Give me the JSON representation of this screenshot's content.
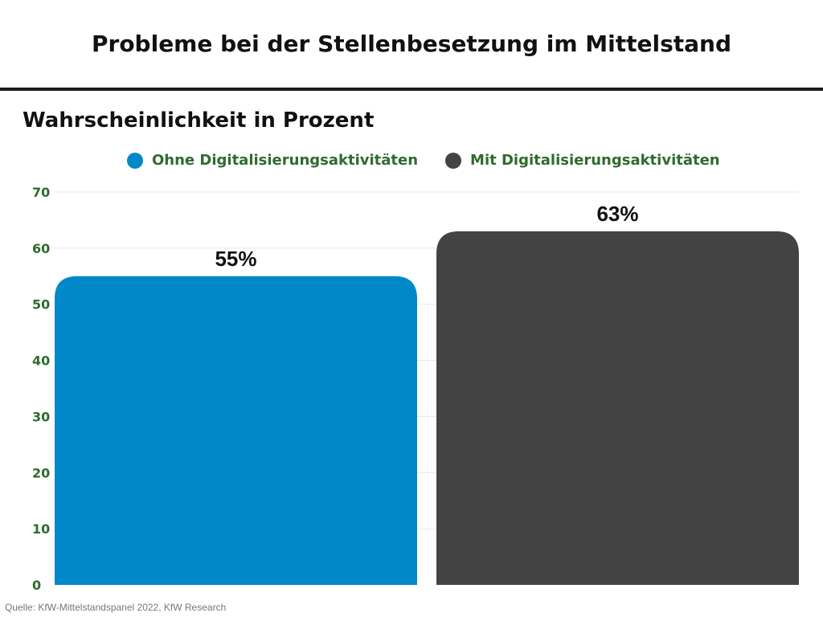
{
  "title": "Probleme bei der Stellenbesetzung im Mittelstand",
  "subtitle": "Wahrscheinlichkeit in Prozent",
  "source": "Quelle: KfW-Mittelstandspanel 2022, KfW Research",
  "colors": {
    "series_1": "#0088c8",
    "series_2": "#434343",
    "axis_text": "#2f6b2f",
    "grid": "#e6e6e6"
  },
  "chart_data": {
    "type": "bar",
    "title": "",
    "xlabel": "",
    "ylabel": "",
    "categories": [
      "Ohne Digitalisierungsaktivitäten",
      "Mit Digitalisierungsaktivitäten"
    ],
    "values": [
      55,
      63
    ],
    "data_labels": [
      "55%",
      "63%"
    ],
    "ylim": [
      0,
      70
    ],
    "yticks": [
      "0",
      "10",
      "20",
      "30",
      "40",
      "50",
      "60",
      "70"
    ],
    "grid": true,
    "legend_position": "top-center"
  }
}
